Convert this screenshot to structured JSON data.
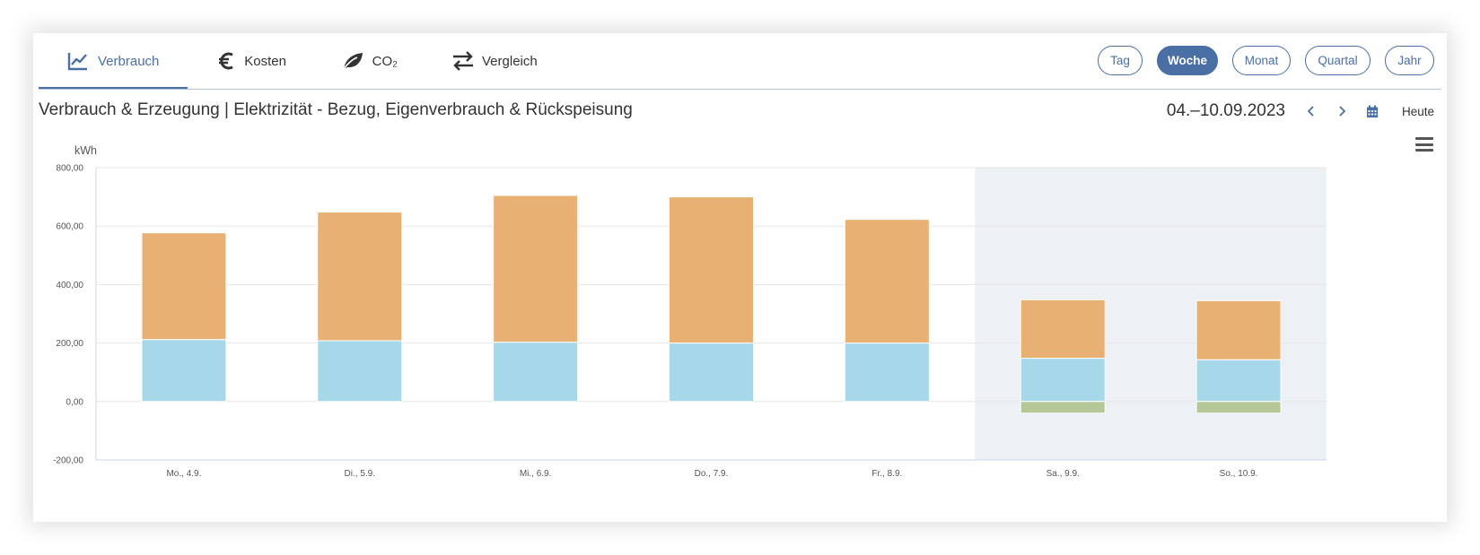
{
  "tabs": [
    {
      "label": "Verbrauch",
      "icon": "line-chart-icon",
      "active": true
    },
    {
      "label": "Kosten",
      "icon": "euro-icon",
      "active": false
    },
    {
      "label": "CO₂",
      "icon": "leaf-icon",
      "active": false
    },
    {
      "label": "Vergleich",
      "icon": "swap-arrows-icon",
      "active": false
    }
  ],
  "periods": [
    {
      "label": "Tag",
      "active": false
    },
    {
      "label": "Woche",
      "active": true
    },
    {
      "label": "Monat",
      "active": false
    },
    {
      "label": "Quartal",
      "active": false
    },
    {
      "label": "Jahr",
      "active": false
    }
  ],
  "title": "Verbrauch & Erzeugung | Elektrizität - Bezug, Eigenverbrauch & Rückspeisung",
  "date_range": "04.–10.09.2023",
  "today_label": "Heute",
  "colors": {
    "accent": "#4a6fa5",
    "bezug": "#e8b073",
    "eigenverbrauch": "#a6d8ea",
    "rueckspeisung": "#b5c796",
    "weekend_band": "#edf0f4"
  },
  "chart_data": {
    "type": "bar",
    "stacked": true,
    "ylabel": "kWh",
    "ylim": [
      -200,
      800
    ],
    "yticks": [
      -200,
      0,
      200,
      400,
      600,
      800
    ],
    "ytick_labels": [
      "-200,00",
      "0,00",
      "200,00",
      "400,00",
      "600,00",
      "800,00"
    ],
    "categories": [
      "Mo., 4.9.",
      "Di., 5.9.",
      "Mi., 6.9.",
      "Do., 7.9.",
      "Fr., 8.9.",
      "Sa., 9.9.",
      "So., 10.9."
    ],
    "highlighted_categories": [
      "Sa., 9.9.",
      "So., 10.9."
    ],
    "series": [
      {
        "values": [
          212,
          208,
          203,
          200,
          200,
          148,
          143
        ],
        "color": "#a6d8ea"
      },
      {
        "values": [
          365,
          440,
          502,
          500,
          423,
          200,
          202
        ],
        "color": "#e8b073"
      },
      {
        "values": [
          0,
          0,
          0,
          0,
          0,
          -40,
          -40
        ],
        "color": "#b5c796"
      }
    ],
    "grid": true,
    "legend": "none"
  }
}
